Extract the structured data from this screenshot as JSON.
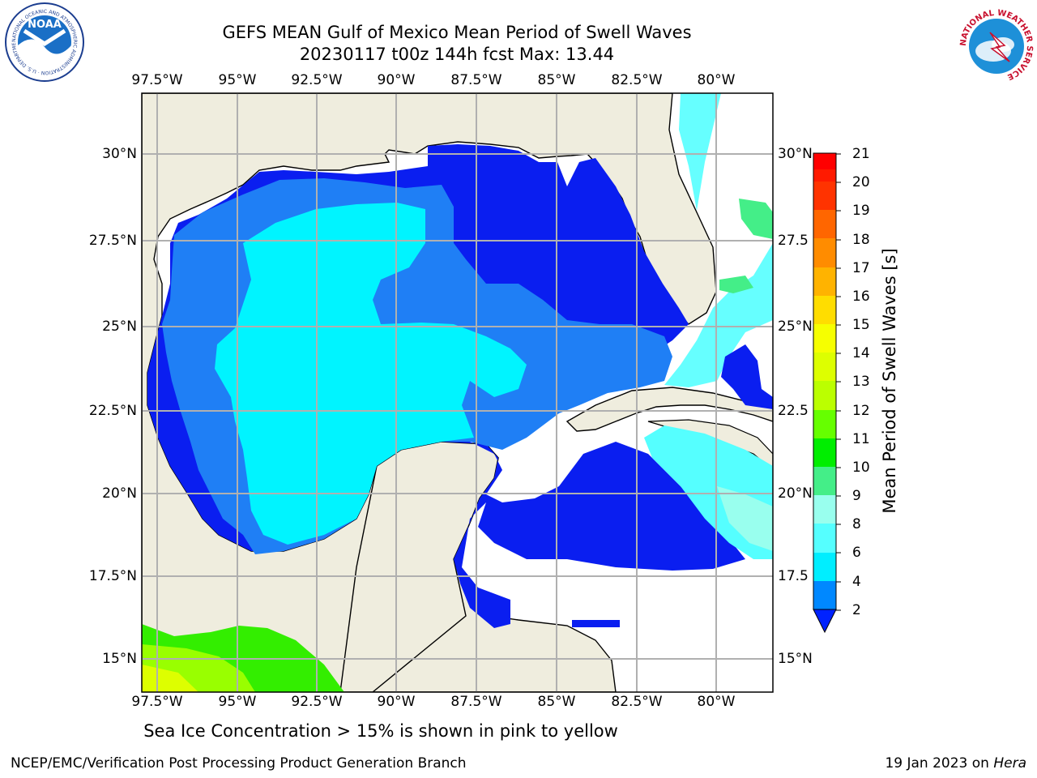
{
  "header": {
    "title_line1": "GEFS MEAN Gulf of Mexico Mean Period of Swell Waves",
    "title_line2": "20230117 t00z 144h fcst   Max: 13.44"
  },
  "logos": {
    "noaa_text": "NOAA",
    "noaa_ring_text": "NATIONAL OCEANIC AND ATMOSPHERIC ADMINISTRATION · U.S. DEPARTMENT OF COMMERCE",
    "nws_ring_text": "NATIONAL WEATHER SERVICE"
  },
  "map": {
    "lon_ticks": [
      "97.5°W",
      "95°W",
      "92.5°W",
      "90°W",
      "87.5°W",
      "85°W",
      "82.5°W",
      "80°W"
    ],
    "lat_ticks": [
      "30°N",
      "27.5°N",
      "25°N",
      "22.5°N",
      "20°N",
      "17.5°N",
      "15°N"
    ],
    "lat_ticks_right": [
      "30°N",
      "27.5",
      "25°N",
      "22.5",
      "20°N",
      "17.5",
      "15°N"
    ],
    "land_color": "#efedde",
    "grid_color": "#b0b0b0"
  },
  "colorbar": {
    "label": "Mean Period of Swell Waves [s]",
    "ticks": [
      "21",
      "20",
      "19",
      "18",
      "17",
      "16",
      "15",
      "14",
      "13",
      "12",
      "11",
      "10",
      "9",
      "8",
      "6",
      "4",
      "2"
    ],
    "colors": [
      "#ff0000",
      "#ff2a00",
      "#ff5500",
      "#ff8000",
      "#ffaa00",
      "#ffcc00",
      "#ffee00",
      "#f0ff00",
      "#ccff00",
      "#99ff00",
      "#66ff00",
      "#22ff00",
      "#00ee00",
      "#44ee88",
      "#99ffee",
      "#55ffff",
      "#00eeff",
      "#0088ff",
      "#0022ff"
    ]
  },
  "note": "Sea Ice Concentration > 15% is shown in pink to yellow",
  "footer": {
    "left": "NCEP/EMC/Verification Post Processing Product Generation Branch",
    "right_prefix": "19 Jan 2023 on ",
    "right_host": "Hera"
  }
}
